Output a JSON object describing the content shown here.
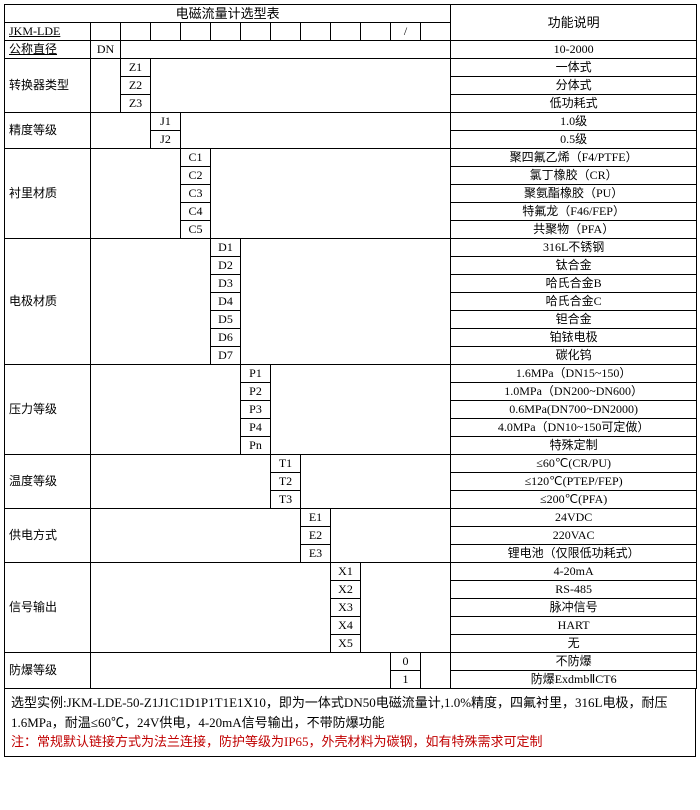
{
  "header": {
    "main_title": "电磁流量计选型表",
    "desc_title": "功能说明",
    "model": "JKM-LDE",
    "slash": "/"
  },
  "sections": [
    {
      "label": "公称直径",
      "label_class": "under",
      "codes": [
        "DN"
      ],
      "col": 0,
      "descs": [
        "10-2000"
      ]
    },
    {
      "label": "转换器类型",
      "codes": [
        "Z1",
        "Z2",
        "Z3"
      ],
      "col": 1,
      "descs": [
        "一体式",
        "分体式",
        "低功耗式"
      ]
    },
    {
      "label": "精度等级",
      "codes": [
        "J1",
        "J2"
      ],
      "col": 2,
      "descs": [
        "1.0级",
        "0.5级"
      ]
    },
    {
      "label": "衬里材质",
      "codes": [
        "C1",
        "C2",
        "C3",
        "C4",
        "C5"
      ],
      "col": 3,
      "descs": [
        "聚四氟乙烯（F4/PTFE）",
        "氯丁橡胶（CR）",
        "聚氨酯橡胶（PU）",
        "特氟龙（F46/FEP）",
        "共聚物（PFA）"
      ]
    },
    {
      "label": "电极材质",
      "codes": [
        "D1",
        "D2",
        "D3",
        "D4",
        "D5",
        "D6",
        "D7"
      ],
      "col": 4,
      "descs": [
        "316L不锈钢",
        "钛合金",
        "哈氏合金B",
        "哈氏合金C",
        "钽合金",
        "铂铱电极",
        "碳化钨"
      ]
    },
    {
      "label": "压力等级",
      "codes": [
        "P1",
        "P2",
        "P3",
        "P4",
        "Pn"
      ],
      "col": 5,
      "descs": [
        "1.6MPa（DN15~150）",
        "1.0MPa（DN200~DN600）",
        "0.6MPa(DN700~DN2000)",
        "4.0MPa（DN10~150可定做）",
        "特殊定制"
      ]
    },
    {
      "label": "温度等级",
      "codes": [
        "T1",
        "T2",
        "T3"
      ],
      "col": 6,
      "descs": [
        "≤60℃(CR/PU)",
        "≤120℃(PTEP/FEP)",
        "≤200℃(PFA)"
      ]
    },
    {
      "label": "供电方式",
      "codes": [
        "E1",
        "E2",
        "E3"
      ],
      "col": 7,
      "descs": [
        "24VDC",
        "220VAC",
        "锂电池（仅限低功耗式）"
      ]
    },
    {
      "label": "信号输出",
      "codes": [
        "X1",
        "X2",
        "X3",
        "X4",
        "X5"
      ],
      "col": 8,
      "descs": [
        "4-20mA",
        "RS-485",
        "脉冲信号",
        "HART",
        "无"
      ]
    },
    {
      "label": "防爆等级",
      "codes": [
        "0",
        "1"
      ],
      "col": 10,
      "descs": [
        "不防爆",
        "防爆ExdmbⅡCT6"
      ]
    }
  ],
  "footer": {
    "line1": "选型实例:JKM-LDE-50-Z1J1C1D1P1T1E1X10，即为一体式DN50电磁流量计,1.0%精度，四氟衬里，316L电极，耐压1.6MPa，耐温≤60℃，24V供电，4-20mA信号输出，不带防爆功能",
    "line2": "注：常规默认链接方式为法兰连接，防护等级为IP65，外壳材料为碳钢，如有特殊需求可定制"
  },
  "style": {
    "label_col_width": 86,
    "code_col_width": 30,
    "desc_col_width": 240,
    "total_code_cols": 12,
    "red_color": "#c00000"
  }
}
